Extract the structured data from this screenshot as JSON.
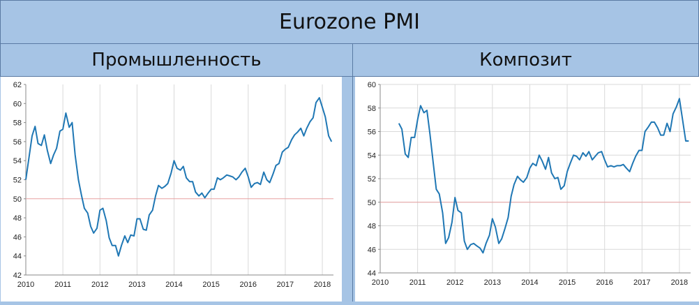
{
  "header": {
    "title": "Eurozone PMI"
  },
  "panels": {
    "left_title": "Промышленность",
    "right_title": "Композит"
  },
  "colors": {
    "line": "#1f77b4",
    "reference": "#e8a0a0",
    "grid": "#d9d9d9",
    "axis": "#888888"
  },
  "chart_data": [
    {
      "type": "line",
      "title": "Промышленность",
      "xlabel": "",
      "ylabel": "",
      "xlim": [
        2010,
        2018.3
      ],
      "ylim": [
        42,
        62
      ],
      "x_ticks": [
        "2010",
        "2011",
        "2012",
        "2013",
        "2014",
        "2015",
        "2016",
        "2017",
        "2018"
      ],
      "y_ticks": [
        "42",
        "44",
        "46",
        "48",
        "50",
        "52",
        "54",
        "56",
        "58",
        "60",
        "62"
      ],
      "grid": "vertical",
      "reference_line": 50,
      "series": [
        {
          "x": [
            2010.0,
            2010.08,
            2010.17,
            2010.25,
            2010.33,
            2010.42,
            2010.5,
            2010.58,
            2010.67,
            2010.75,
            2010.83,
            2010.92,
            2011.0,
            2011.08,
            2011.17,
            2011.25,
            2011.33,
            2011.42,
            2011.5,
            2011.58,
            2011.67,
            2011.75,
            2011.83,
            2011.92,
            2012.0,
            2012.08,
            2012.17,
            2012.25,
            2012.33,
            2012.42,
            2012.5,
            2012.58,
            2012.67,
            2012.75,
            2012.83,
            2012.92,
            2013.0,
            2013.08,
            2013.17,
            2013.25,
            2013.33,
            2013.42,
            2013.5,
            2013.58,
            2013.67,
            2013.75,
            2013.83,
            2013.92,
            2014.0,
            2014.08,
            2014.17,
            2014.25,
            2014.33,
            2014.42,
            2014.5,
            2014.58,
            2014.67,
            2014.75,
            2014.83,
            2014.92,
            2015.0,
            2015.08,
            2015.17,
            2015.25,
            2015.33,
            2015.42,
            2015.5,
            2015.58,
            2015.67,
            2015.75,
            2015.83,
            2015.92,
            2016.0,
            2016.08,
            2016.17,
            2016.25,
            2016.33,
            2016.42,
            2016.5,
            2016.58,
            2016.67,
            2016.75,
            2016.83,
            2016.92,
            2017.0,
            2017.08,
            2017.17,
            2017.25,
            2017.33,
            2017.42,
            2017.5,
            2017.58,
            2017.67,
            2017.75,
            2017.83,
            2017.92,
            2018.0,
            2018.08,
            2018.17,
            2018.25
          ],
          "values": [
            52.0,
            54.2,
            56.6,
            57.6,
            55.8,
            55.6,
            56.7,
            55.1,
            53.7,
            54.6,
            55.3,
            57.1,
            57.3,
            59.0,
            57.5,
            58.0,
            54.6,
            52.0,
            50.4,
            49.0,
            48.5,
            47.1,
            46.4,
            46.9,
            48.8,
            49.0,
            47.7,
            45.9,
            45.1,
            45.1,
            44.0,
            45.1,
            46.1,
            45.4,
            46.2,
            46.1,
            47.9,
            47.9,
            46.8,
            46.7,
            48.3,
            48.8,
            50.3,
            51.4,
            51.1,
            51.3,
            51.6,
            52.7,
            54.0,
            53.2,
            53.0,
            53.4,
            52.2,
            51.8,
            51.8,
            50.7,
            50.3,
            50.6,
            50.1,
            50.6,
            51.0,
            51.0,
            52.2,
            52.0,
            52.2,
            52.5,
            52.4,
            52.3,
            52.0,
            52.3,
            52.8,
            53.2,
            52.3,
            51.2,
            51.6,
            51.7,
            51.5,
            52.8,
            52.0,
            51.7,
            52.6,
            53.5,
            53.7,
            54.9,
            55.2,
            55.4,
            56.2,
            56.7,
            57.0,
            57.4,
            56.6,
            57.4,
            58.1,
            58.5,
            60.1,
            60.6,
            59.6,
            58.6,
            56.6,
            56.0
          ]
        }
      ]
    },
    {
      "type": "line",
      "title": "Композит",
      "xlabel": "",
      "ylabel": "",
      "xlim": [
        2010,
        2018.3
      ],
      "ylim": [
        44,
        60
      ],
      "x_ticks": [
        "2010",
        "2011",
        "2012",
        "2013",
        "2014",
        "2015",
        "2016",
        "2017",
        "2018"
      ],
      "y_ticks": [
        "44",
        "46",
        "48",
        "50",
        "52",
        "54",
        "56",
        "58",
        "60"
      ],
      "grid": "both",
      "reference_line": 50,
      "series": [
        {
          "x": [
            2010.5,
            2010.58,
            2010.67,
            2010.75,
            2010.83,
            2010.92,
            2011.0,
            2011.08,
            2011.17,
            2011.25,
            2011.33,
            2011.42,
            2011.5,
            2011.58,
            2011.67,
            2011.75,
            2011.83,
            2011.92,
            2012.0,
            2012.08,
            2012.17,
            2012.25,
            2012.33,
            2012.42,
            2012.5,
            2012.58,
            2012.67,
            2012.75,
            2012.83,
            2012.92,
            2013.0,
            2013.08,
            2013.17,
            2013.25,
            2013.33,
            2013.42,
            2013.5,
            2013.58,
            2013.67,
            2013.75,
            2013.83,
            2013.92,
            2014.0,
            2014.08,
            2014.17,
            2014.25,
            2014.33,
            2014.42,
            2014.5,
            2014.58,
            2014.67,
            2014.75,
            2014.83,
            2014.92,
            2015.0,
            2015.08,
            2015.17,
            2015.25,
            2015.33,
            2015.42,
            2015.5,
            2015.58,
            2015.67,
            2015.75,
            2015.83,
            2015.92,
            2016.0,
            2016.08,
            2016.17,
            2016.25,
            2016.33,
            2016.42,
            2016.5,
            2016.58,
            2016.67,
            2016.75,
            2016.83,
            2016.92,
            2017.0,
            2017.08,
            2017.17,
            2017.25,
            2017.33,
            2017.42,
            2017.5,
            2017.58,
            2017.67,
            2017.75,
            2017.83,
            2017.92,
            2018.0,
            2018.08,
            2018.17,
            2018.25
          ],
          "values": [
            56.7,
            56.2,
            54.1,
            53.8,
            55.5,
            55.5,
            57.0,
            58.2,
            57.6,
            57.8,
            55.8,
            53.3,
            51.1,
            50.7,
            49.1,
            46.5,
            47.0,
            48.3,
            50.4,
            49.3,
            49.1,
            46.7,
            46.0,
            46.4,
            46.5,
            46.3,
            46.1,
            45.7,
            46.5,
            47.2,
            48.6,
            47.9,
            46.5,
            46.9,
            47.7,
            48.7,
            50.5,
            51.5,
            52.2,
            51.9,
            51.7,
            52.1,
            52.9,
            53.3,
            53.1,
            54.0,
            53.5,
            52.8,
            53.8,
            52.5,
            52.0,
            52.1,
            51.1,
            51.4,
            52.6,
            53.3,
            54.0,
            53.9,
            53.6,
            54.2,
            53.9,
            54.3,
            53.6,
            53.9,
            54.2,
            54.3,
            53.6,
            53.0,
            53.1,
            53.0,
            53.1,
            53.1,
            53.2,
            52.9,
            52.6,
            53.3,
            53.9,
            54.4,
            54.4,
            56.0,
            56.4,
            56.8,
            56.8,
            56.3,
            55.7,
            55.7,
            56.7,
            56.0,
            57.5,
            58.1,
            58.8,
            57.1,
            55.2,
            55.2
          ]
        }
      ]
    }
  ]
}
